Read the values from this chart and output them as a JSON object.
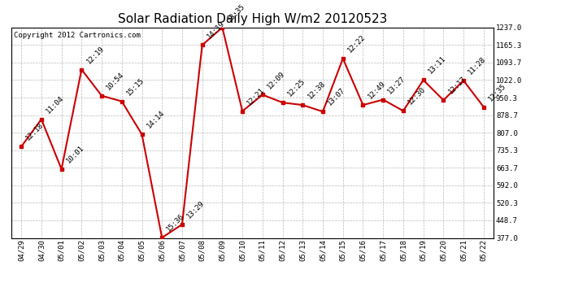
{
  "title": "Solar Radiation Daily High W/m2 20120523",
  "copyright": "Copyright 2012 Cartronics.com",
  "x_labels": [
    "04/29",
    "04/30",
    "05/01",
    "05/02",
    "05/03",
    "05/04",
    "05/05",
    "05/06",
    "05/07",
    "05/08",
    "05/09",
    "05/10",
    "05/11",
    "05/12",
    "05/13",
    "05/14",
    "05/15",
    "05/16",
    "05/17",
    "05/18",
    "05/19",
    "05/20",
    "05/21",
    "05/22"
  ],
  "y_values": [
    750,
    862,
    658,
    1065,
    958,
    935,
    800,
    378,
    432,
    1165,
    1237,
    895,
    962,
    930,
    920,
    893,
    1110,
    920,
    942,
    896,
    1022,
    940,
    1020,
    912
  ],
  "time_labels": [
    "12:18",
    "11:04",
    "10:01",
    "12:19",
    "10:54",
    "15:15",
    "14:14",
    "15:36",
    "13:29",
    "14:19",
    "13:35",
    "12:21",
    "12:09",
    "12:25",
    "12:38",
    "13:07",
    "12:22",
    "12:49",
    "13:27",
    "12:30",
    "13:11",
    "12:17",
    "11:28",
    "12:35"
  ],
  "line_color": "#cc0000",
  "marker_color": "#cc0000",
  "background_color": "#ffffff",
  "grid_color": "#bbbbbb",
  "ylim": [
    377.0,
    1237.0
  ],
  "yticks": [
    377.0,
    448.7,
    520.3,
    592.0,
    663.7,
    735.3,
    807.0,
    878.7,
    950.3,
    1022.0,
    1093.7,
    1165.3,
    1237.0
  ],
  "title_fontsize": 11,
  "annotation_fontsize": 6.5,
  "copyright_fontsize": 6.5
}
